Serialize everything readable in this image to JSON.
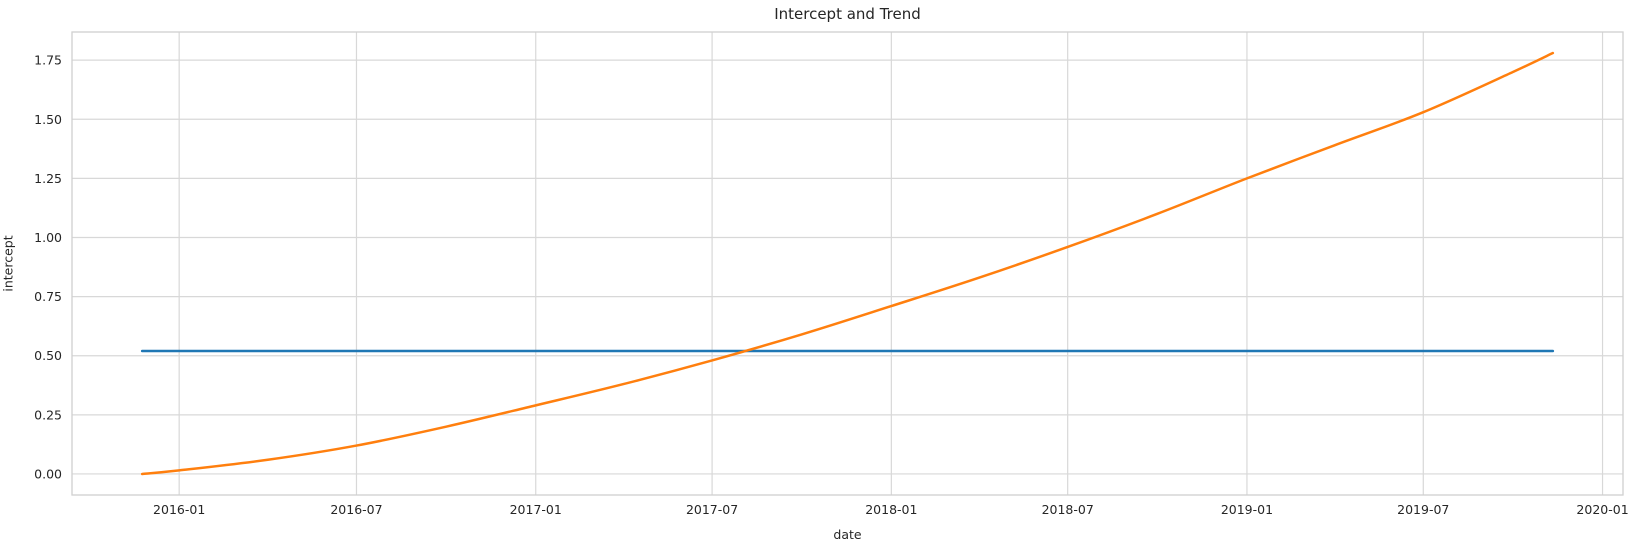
{
  "figure": {
    "background": "#ffffff",
    "grid_color": "#d8d8d8",
    "spine_color": "#d0d0d0",
    "text_color": "#262626"
  },
  "chart_data": {
    "type": "line",
    "title": "Intercept and Trend",
    "xlabel": "date",
    "ylabel": "intercept",
    "grid": true,
    "legend_position": "none",
    "xlim": [
      "2015-09-13",
      "2020-01-22"
    ],
    "ylim": [
      -0.089,
      1.869
    ],
    "x_tick_dates": [
      "2016-01-01",
      "2016-07-01",
      "2017-01-01",
      "2017-07-01",
      "2018-01-01",
      "2018-07-01",
      "2019-01-01",
      "2019-07-01",
      "2020-01-01"
    ],
    "x_tick_labels": [
      "2016-01",
      "2016-07",
      "2017-01",
      "2017-07",
      "2018-01",
      "2018-07",
      "2019-01",
      "2019-07",
      "2020-01"
    ],
    "y_ticks": [
      0.0,
      0.25,
      0.5,
      0.75,
      1.0,
      1.25,
      1.5,
      1.75
    ],
    "y_tick_labels": [
      "0.00",
      "0.25",
      "0.50",
      "0.75",
      "1.00",
      "1.25",
      "1.50",
      "1.75"
    ],
    "series": [
      {
        "name": "intercept",
        "color": "#1f77b4",
        "line_width": 2.5,
        "smooth": false,
        "points": [
          [
            "2015-11-24",
            0.52
          ],
          [
            "2019-11-11",
            0.52
          ]
        ]
      },
      {
        "name": "trend",
        "color": "#ff7f0e",
        "line_width": 2.5,
        "smooth": true,
        "points": [
          [
            "2015-11-24",
            0.0
          ],
          [
            "2016-01-01",
            0.015
          ],
          [
            "2016-04-01",
            0.06
          ],
          [
            "2016-07-01",
            0.12
          ],
          [
            "2016-10-01",
            0.2
          ],
          [
            "2017-01-01",
            0.29
          ],
          [
            "2017-04-01",
            0.38
          ],
          [
            "2017-07-01",
            0.48
          ],
          [
            "2017-10-01",
            0.59
          ],
          [
            "2018-01-01",
            0.71
          ],
          [
            "2018-04-01",
            0.83
          ],
          [
            "2018-07-01",
            0.96
          ],
          [
            "2018-10-01",
            1.1
          ],
          [
            "2019-01-01",
            1.25
          ],
          [
            "2019-04-01",
            1.39
          ],
          [
            "2019-07-01",
            1.53
          ],
          [
            "2019-10-01",
            1.7
          ],
          [
            "2019-11-11",
            1.78
          ]
        ]
      }
    ]
  }
}
